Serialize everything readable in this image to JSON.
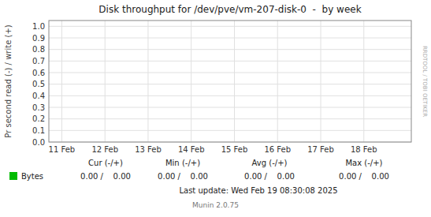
{
  "chart_data": {
    "type": "line",
    "title": "Disk throughput for /dev/pve/vm-207-disk-0  -  by week",
    "y_label": "Pr second read (-) / write (+)",
    "x": [],
    "series": [
      {
        "name": "Bytes",
        "color": "#00bb00",
        "values": []
      }
    ],
    "xlim": [
      -0.3,
      8.1
    ],
    "xticks": [
      {
        "value": 0,
        "label": "11 Feb"
      },
      {
        "value": 1,
        "label": "12 Feb"
      },
      {
        "value": 2,
        "label": "13 Feb"
      },
      {
        "value": 3,
        "label": "14 Feb"
      },
      {
        "value": 4,
        "label": "15 Feb"
      },
      {
        "value": 5,
        "label": "16 Feb"
      },
      {
        "value": 6,
        "label": "17 Feb"
      },
      {
        "value": 7,
        "label": "18 Feb"
      }
    ],
    "ylim": [
      0.0,
      1.05
    ],
    "yticks": [
      {
        "value": 0.0,
        "label": "0.0"
      },
      0.1,
      0.2,
      0.3,
      0.4,
      0.5,
      0.6,
      0.7,
      0.8,
      0.9,
      {
        "value": 1.0,
        "label": "1.0"
      }
    ],
    "grid": true,
    "legend": "bottom",
    "annotations": [
      "Cur (-/+)",
      "Min (-/+)",
      "Avg (-/+)",
      "Max (-/+)",
      "0.00 /    0.00",
      "0.00 /    0.00",
      "0.00 /    0.00",
      "0.00 /    0.00",
      "Last update: Wed Feb 19 08:30:08 2025",
      "Munin 2.0.75",
      "RRDTOOL / TOBI OETIKER"
    ]
  }
}
